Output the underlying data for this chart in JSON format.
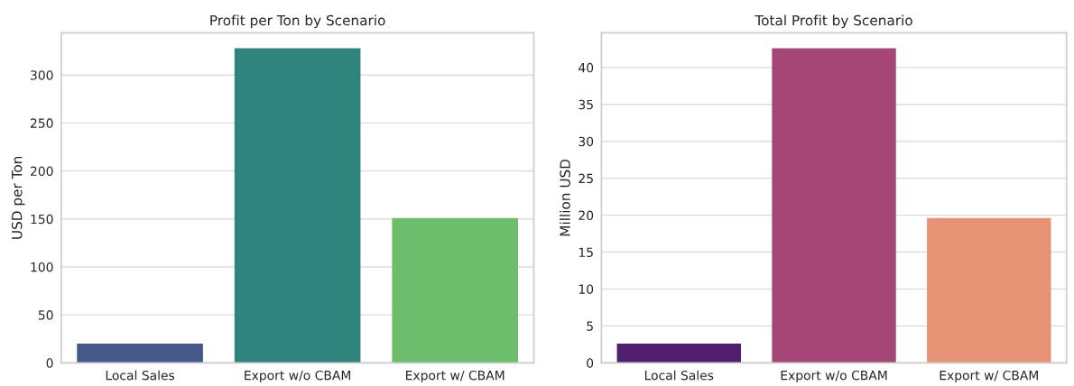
{
  "chart_data": [
    {
      "type": "bar",
      "title": "Profit per Ton by Scenario",
      "ylabel": "USD per Ton",
      "categories": [
        "Local Sales",
        "Export w/o CBAM",
        "Export w/ CBAM"
      ],
      "values": [
        20,
        328,
        151
      ],
      "colors": [
        "#46578a",
        "#2e847d",
        "#6cbd6c"
      ],
      "ylim": [
        0,
        344
      ],
      "yticks": [
        0,
        50,
        100,
        150,
        200,
        250,
        300
      ],
      "grid": "y"
    },
    {
      "type": "bar",
      "title": "Total Profit by Scenario",
      "ylabel": "Million USD",
      "categories": [
        "Local Sales",
        "Export w/o CBAM",
        "Export w/ CBAM"
      ],
      "values": [
        2.6,
        42.6,
        19.6
      ],
      "colors": [
        "#4f1e6c",
        "#a64677",
        "#e69274"
      ],
      "ylim": [
        0,
        44.7
      ],
      "yticks": [
        0,
        5,
        10,
        15,
        20,
        25,
        30,
        35,
        40
      ],
      "grid": "y"
    }
  ]
}
